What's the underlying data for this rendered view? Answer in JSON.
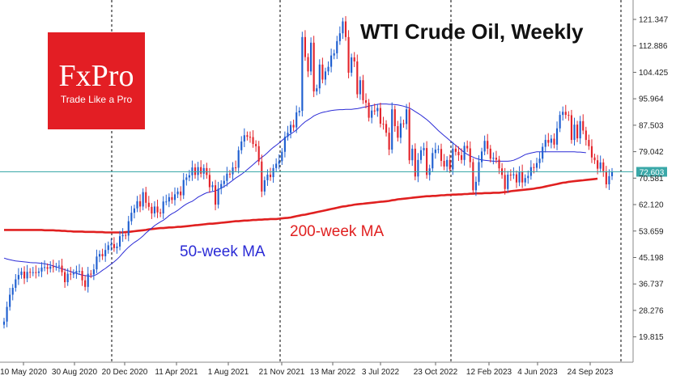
{
  "logo": {
    "brand": "FxPro",
    "tagline": "Trade Like a Pro"
  },
  "colors": {
    "bull": "#1f5fd0",
    "bear": "#e3242b",
    "ma50": "#2b2bd6",
    "ma200": "#e02020",
    "price_line": "#3aa8a8",
    "price_tag_bg": "#3aa8a8"
  },
  "chart_data": {
    "type": "candlestick",
    "title": "WTI Crude Oil, Weekly",
    "y_ticks": [
      "121.347",
      "112.886",
      "104.425",
      "95.964",
      "87.503",
      "79.042",
      "70.581",
      "62.120",
      "53.659",
      "45.198",
      "36.737",
      "28.276",
      "19.815"
    ],
    "x_ticks": [
      "10 May 2020",
      "30 Aug 2020",
      "20 Dec 2020",
      "11 Apr 2021",
      "1 Aug 2021",
      "21 Nov 2021",
      "13 Mar 2022",
      "3 Jul 2022",
      "23 Oct 2022",
      "12 Feb 2023",
      "4 Jun 2023",
      "24 Sep 2023"
    ],
    "ylim": [
      13.0,
      126.0
    ],
    "current_price": 72.603,
    "current_price_label": "72.603",
    "annotations": {
      "ma50": "50-week MA",
      "ma200": "200-week MA"
    },
    "close": [
      24.7,
      29.4,
      33.3,
      35.5,
      38.2,
      39.6,
      40.7,
      38.5,
      40.6,
      40.4,
      40.5,
      40.3,
      40.7,
      42.0,
      42.1,
      41.6,
      42.3,
      42.2,
      42.3,
      42.6,
      40.5,
      37.3,
      40.0,
      39.8,
      40.2,
      40.9,
      40.9,
      37.9,
      35.8,
      40.0,
      39.8,
      41.4,
      45.5,
      46.3,
      45.6,
      47.6,
      49.1,
      49.5,
      48.2,
      48.7,
      52.0,
      52.4,
      52.2,
      56.8,
      59.5,
      60.9,
      63.2,
      61.5,
      66.1,
      62.7,
      61.4,
      59.3,
      61.5,
      59.6,
      59.3,
      63.1,
      63.1,
      64.5,
      63.6,
      65.4,
      66.3,
      65.1,
      70.0,
      70.8,
      71.5,
      74.0,
      71.6,
      74.1,
      72.0,
      73.8,
      71.6,
      67.7,
      68.3,
      62.1,
      67.2,
      68.7,
      69.7,
      72.0,
      71.8,
      74.0,
      73.9,
      79.5,
      82.3,
      84.3,
      83.8,
      83.7,
      81.5,
      80.8,
      75.9,
      66.3,
      69.9,
      71.7,
      70.9,
      73.8,
      75.2,
      76.0,
      79.0,
      83.8,
      85.1,
      87.6,
      86.8,
      91.6,
      92.1,
      115.7,
      109.3,
      104.7,
      113.9,
      98.3,
      99.3,
      106.9,
      102.1,
      104.7,
      106.2,
      109.8,
      110.5,
      114.4,
      116.9,
      120.7,
      115.7,
      104.3,
      109.2,
      107.9,
      97.4,
      101.9,
      95.5,
      94.7,
      89.9,
      92.2,
      92.0,
      93.0,
      88.0,
      87.9,
      85.1,
      79.7,
      92.6,
      87.2,
      83.5,
      88.1,
      87.9,
      92.6,
      76.3,
      80.0,
      71.1,
      76.4,
      79.5,
      80.2,
      71.6,
      73.7,
      78.6,
      79.7,
      79.9,
      76.1,
      74.3,
      76.4,
      73.4,
      80.0,
      79.0,
      77.9,
      76.4,
      80.9,
      80.1,
      75.7,
      66.7,
      69.4,
      75.7,
      79.1,
      82.5,
      80.0,
      76.8,
      77.1,
      76.5,
      73.7,
      71.6,
      67.1,
      71.7,
      71.5,
      71.8,
      69.2,
      72.7,
      69.2,
      70.6,
      71.3,
      74.1,
      73.9,
      75.4,
      76.8,
      80.6,
      82.8,
      81.9,
      83.2,
      81.3,
      86.5,
      90.8,
      91.8,
      90.8,
      90.7,
      82.8,
      87.7,
      83.3,
      88.8,
      85.8,
      82.8,
      80.8,
      77.2,
      76.3,
      73.6,
      75.6,
      72.8,
      68.6,
      71.2,
      72.6
    ],
    "ma50": [
      45.0,
      44.7,
      44.5,
      44.3,
      44.1,
      44.0,
      43.9,
      43.8,
      43.7,
      43.6,
      43.5,
      43.5,
      43.4,
      43.3,
      43.2,
      43.0,
      42.8,
      42.5,
      42.2,
      41.9,
      41.6,
      41.3,
      41.0,
      40.7,
      40.4,
      40.1,
      39.8,
      39.6,
      39.4,
      39.3,
      39.2,
      39.4,
      39.8,
      40.4,
      41.1,
      41.7,
      42.4,
      43.1,
      43.8,
      44.6,
      45.5,
      46.6,
      47.6,
      48.5,
      49.3,
      50.0,
      50.6,
      51.3,
      52.1,
      53.0,
      53.8,
      54.6,
      55.4,
      56.0,
      56.6,
      57.1,
      57.8,
      58.6,
      59.2,
      59.7,
      60.3,
      61.0,
      61.7,
      62.3,
      62.8,
      63.2,
      63.8,
      64.5,
      65.0,
      65.5,
      65.9,
      66.1,
      66.3,
      66.5,
      66.9,
      67.4,
      67.9,
      68.5,
      69.2,
      69.9,
      70.6,
      71.2,
      71.8,
      72.5,
      73.3,
      74.1,
      74.9,
      75.7,
      76.5,
      77.2,
      77.9,
      78.7,
      79.6,
      80.4,
      81.1,
      81.8,
      82.6,
      83.4,
      84.1,
      84.7,
      85.3,
      86.0,
      86.9,
      87.8,
      88.6,
      89.2,
      89.8,
      90.5,
      90.9,
      91.3,
      91.6,
      91.8,
      92.0,
      92.2,
      92.3,
      92.4,
      92.5,
      92.5,
      92.6,
      92.6,
      92.6,
      92.7,
      92.8,
      93.0,
      93.2,
      93.4,
      93.6,
      93.8,
      94.0,
      94.2,
      94.3,
      94.3,
      94.3,
      94.2,
      94.2,
      94.1,
      94.0,
      93.8,
      93.6,
      93.3,
      93.0,
      92.5,
      91.9,
      91.3,
      90.7,
      90.0,
      89.3,
      88.5,
      87.6,
      86.7,
      85.8,
      85.0,
      84.2,
      83.4,
      82.6,
      81.8,
      81.1,
      80.3,
      79.5,
      78.8,
      78.2,
      77.7,
      77.3,
      76.9,
      76.6,
      76.4,
      76.3,
      76.2,
      76.1,
      76.0,
      76.0,
      76.0,
      76.0,
      76.0,
      76.0,
      76.1,
      76.3,
      76.7,
      77.1,
      77.6,
      78.1,
      78.4,
      78.6,
      78.8,
      79.0,
      79.0,
      79.0,
      79.0,
      79.0,
      79.0,
      79.0,
      79.0,
      79.0,
      79.0,
      79.0,
      79.0,
      79.0,
      79.0,
      78.9,
      78.9,
      78.8,
      78.7
    ],
    "ma200": [
      54.0,
      54.0,
      54.0,
      54.0,
      54.0,
      54.0,
      54.0,
      54.0,
      54.0,
      54.0,
      54.0,
      54.0,
      54.0,
      54.0,
      53.9,
      53.9,
      53.9,
      53.9,
      53.8,
      53.8,
      53.7,
      53.7,
      53.6,
      53.6,
      53.5,
      53.5,
      53.5,
      53.5,
      53.4,
      53.4,
      53.4,
      53.4,
      53.3,
      53.3,
      53.3,
      53.2,
      53.2,
      53.2,
      53.2,
      53.2,
      53.2,
      53.2,
      53.3,
      53.4,
      53.5,
      53.6,
      53.7,
      53.8,
      53.9,
      54.0,
      54.2,
      54.3,
      54.4,
      54.5,
      54.6,
      54.6,
      54.7,
      54.8,
      54.8,
      54.9,
      55.0,
      55.0,
      55.1,
      55.2,
      55.3,
      55.4,
      55.5,
      55.6,
      55.7,
      55.8,
      55.9,
      56.0,
      56.0,
      56.1,
      56.2,
      56.3,
      56.4,
      56.5,
      56.6,
      56.7,
      56.8,
      56.8,
      56.9,
      57.0,
      57.0,
      57.1,
      57.2,
      57.2,
      57.3,
      57.3,
      57.4,
      57.4,
      57.5,
      57.5,
      57.5,
      57.6,
      57.7,
      57.8,
      57.9,
      58.0,
      58.2,
      58.4,
      58.6,
      58.8,
      58.9,
      59.1,
      59.3,
      59.5,
      59.7,
      59.9,
      60.1,
      60.3,
      60.5,
      60.7,
      60.9,
      61.1,
      61.3,
      61.5,
      61.6,
      61.8,
      61.9,
      62.1,
      62.2,
      62.3,
      62.4,
      62.5,
      62.6,
      62.7,
      62.8,
      62.9,
      63.0,
      63.1,
      63.2,
      63.3,
      63.5,
      63.6,
      63.8,
      63.9,
      64.0,
      64.1,
      64.2,
      64.3,
      64.4,
      64.5,
      64.6,
      64.7,
      64.8,
      64.8,
      64.9,
      64.9,
      65.0,
      65.1,
      65.1,
      65.2,
      65.2,
      65.3,
      65.3,
      65.4,
      65.4,
      65.5,
      65.5,
      65.6,
      65.6,
      65.7,
      65.7,
      65.7,
      65.8,
      65.8,
      65.8,
      65.9,
      65.9,
      65.9,
      66.0,
      66.1,
      66.2,
      66.4,
      66.5,
      66.6,
      66.7,
      66.8,
      66.9,
      67.0,
      67.1,
      67.2,
      67.4,
      67.5,
      67.7,
      67.9,
      68.1,
      68.3,
      68.5,
      68.7,
      68.9,
      69.1,
      69.2,
      69.4,
      69.5,
      69.6,
      69.7,
      69.8,
      69.9,
      70.0,
      70.1,
      70.2,
      70.3,
      70.4
    ]
  }
}
